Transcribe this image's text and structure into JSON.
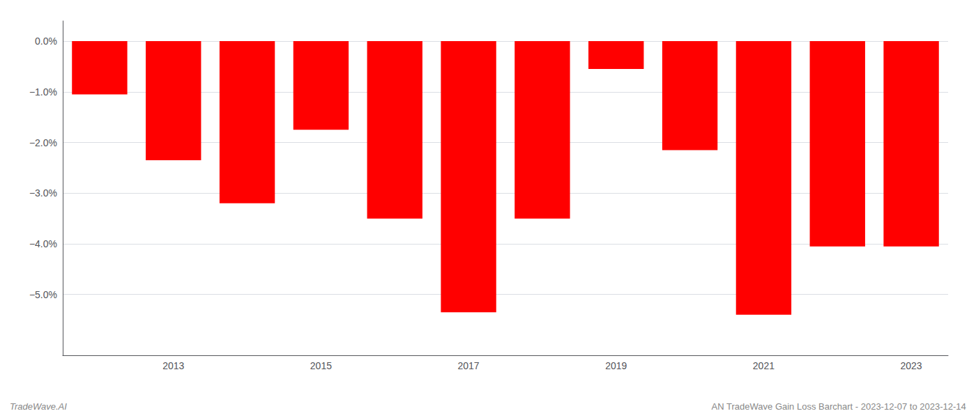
{
  "chart_data": {
    "type": "bar",
    "categories": [
      null,
      "2013",
      null,
      "2015",
      null,
      "2017",
      null,
      "2019",
      null,
      "2021",
      null,
      "2023"
    ],
    "values": [
      -0.0105,
      -0.0235,
      -0.032,
      -0.0175,
      -0.035,
      -0.0535,
      -0.035,
      -0.0055,
      -0.0215,
      -0.054,
      -0.0405,
      -0.0405
    ],
    "color": "#ff0000",
    "ylim": [
      -0.062,
      0.004
    ],
    "yticks": [
      {
        "value": 0.0,
        "label": "0.0%"
      },
      {
        "value": -0.01,
        "label": "−1.0%"
      },
      {
        "value": -0.02,
        "label": "−2.0%"
      },
      {
        "value": -0.03,
        "label": "−3.0%"
      },
      {
        "value": -0.04,
        "label": "−4.0%"
      },
      {
        "value": -0.05,
        "label": "−5.0%"
      }
    ],
    "grid": true,
    "annotations": [
      "TradeWave.AI",
      "AN TradeWave Gain Loss Barchart - 2023-12-07 to 2023-12-14"
    ]
  }
}
